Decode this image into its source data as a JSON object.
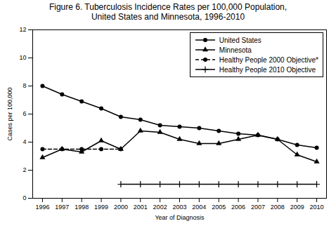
{
  "chart_data": {
    "type": "line",
    "title": "Figure 6. Tuberculosis Incidence Rates per 100,000 Population,\nUnited States and Minnesota, 1996-2010",
    "xlabel": "Year of Diagnosis",
    "ylabel": "Cases per 100,000",
    "x": [
      1996,
      1997,
      1998,
      1999,
      2000,
      2001,
      2002,
      2003,
      2004,
      2005,
      2006,
      2007,
      2008,
      2009,
      2010
    ],
    "series": [
      {
        "name": "United States",
        "color": "black",
        "marker": "circle",
        "line_style": "solid",
        "values": [
          8.0,
          7.4,
          6.9,
          6.4,
          5.8,
          5.6,
          5.2,
          5.1,
          5.0,
          4.8,
          4.6,
          4.5,
          4.2,
          3.8,
          3.6
        ]
      },
      {
        "name": "Minnesota",
        "color": "black",
        "marker": "triangle",
        "line_style": "solid",
        "values": [
          2.9,
          3.5,
          3.3,
          4.1,
          3.5,
          4.8,
          4.7,
          4.2,
          3.9,
          3.9,
          4.2,
          4.5,
          4.2,
          3.1,
          2.6
        ]
      },
      {
        "name": "Healthy People 2000 Objective*",
        "color": "black",
        "marker": "circle",
        "line_style": "dashed",
        "values": [
          3.5,
          3.5,
          3.5,
          3.5,
          3.5,
          null,
          null,
          null,
          null,
          null,
          null,
          null,
          null,
          null,
          null
        ]
      },
      {
        "name": "Healthy People 2010 Objective",
        "color": "black",
        "marker": "plus",
        "line_style": "solid",
        "values": [
          null,
          null,
          null,
          null,
          1.0,
          1.0,
          1.0,
          1.0,
          1.0,
          1.0,
          1.0,
          1.0,
          1.0,
          1.0,
          1.0
        ]
      }
    ],
    "xlim": [
      1995.5,
      2010.5
    ],
    "xticks": [
      1996,
      1997,
      1998,
      1999,
      2000,
      2001,
      2002,
      2003,
      2004,
      2005,
      2006,
      2007,
      2008,
      2009,
      2010
    ],
    "ylim": [
      0,
      12
    ],
    "yticks": [
      0,
      2,
      4,
      6,
      8,
      10,
      12
    ],
    "grid": false,
    "legend": "upper right"
  }
}
